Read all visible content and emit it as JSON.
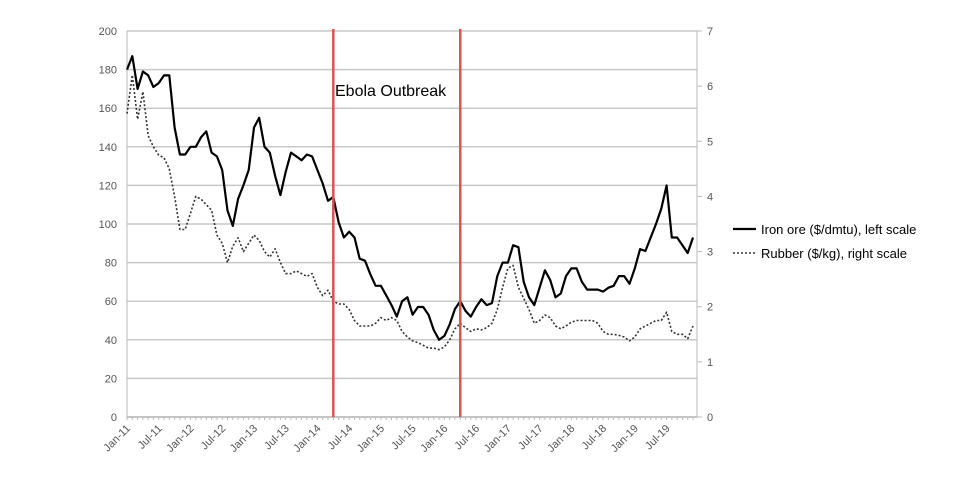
{
  "chart_data": {
    "type": "line",
    "title": "",
    "x": [
      "Jan-11",
      "Feb-11",
      "Mar-11",
      "Apr-11",
      "May-11",
      "Jun-11",
      "Jul-11",
      "Aug-11",
      "Sep-11",
      "Oct-11",
      "Nov-11",
      "Dec-11",
      "Jan-12",
      "Feb-12",
      "Mar-12",
      "Apr-12",
      "May-12",
      "Jun-12",
      "Jul-12",
      "Aug-12",
      "Sep-12",
      "Oct-12",
      "Nov-12",
      "Dec-12",
      "Jan-13",
      "Feb-13",
      "Mar-13",
      "Apr-13",
      "May-13",
      "Jun-13",
      "Jul-13",
      "Aug-13",
      "Sep-13",
      "Oct-13",
      "Nov-13",
      "Dec-13",
      "Jan-14",
      "Feb-14",
      "Mar-14",
      "Apr-14",
      "May-14",
      "Jun-14",
      "Jul-14",
      "Aug-14",
      "Sep-14",
      "Oct-14",
      "Nov-14",
      "Dec-14",
      "Jan-15",
      "Feb-15",
      "Mar-15",
      "Apr-15",
      "May-15",
      "Jun-15",
      "Jul-15",
      "Aug-15",
      "Sep-15",
      "Oct-15",
      "Nov-15",
      "Dec-15",
      "Jan-16",
      "Feb-16",
      "Mar-16",
      "Apr-16",
      "May-16",
      "Jun-16",
      "Jul-16",
      "Aug-16",
      "Sep-16",
      "Oct-16",
      "Nov-16",
      "Dec-16",
      "Jan-17",
      "Feb-17",
      "Mar-17",
      "Apr-17",
      "May-17",
      "Jun-17",
      "Jul-17",
      "Aug-17",
      "Sep-17",
      "Oct-17",
      "Nov-17",
      "Dec-17",
      "Jan-18",
      "Feb-18",
      "Mar-18",
      "Apr-18",
      "May-18",
      "Jun-18",
      "Jul-18",
      "Aug-18",
      "Sep-18",
      "Oct-18",
      "Nov-18",
      "Dec-18",
      "Jan-19",
      "Feb-19",
      "Mar-19",
      "Apr-19",
      "May-19",
      "Jun-19",
      "Jul-19",
      "Aug-19",
      "Sep-19",
      "Oct-19",
      "Nov-19",
      "Dec-19"
    ],
    "x_tick_labels": [
      "Jan-11",
      "Jul-11",
      "Jan-12",
      "Jul-12",
      "Jan-13",
      "Jul-13",
      "Jan-14",
      "Jul-14",
      "Jan-15",
      "Jul-15",
      "Jan-16",
      "Jul-16",
      "Jan-17",
      "Jul-17",
      "Jan-18",
      "Jul-18",
      "Jan-19",
      "Jul-19"
    ],
    "y_left": {
      "range": [
        0,
        200
      ],
      "ticks": [
        "0",
        "20",
        "40",
        "60",
        "80",
        "100",
        "120",
        "140",
        "160",
        "180",
        "200"
      ]
    },
    "y_right": {
      "range": [
        0,
        7
      ],
      "ticks": [
        "0",
        "1",
        "2",
        "3",
        "4",
        "5",
        "6",
        "7"
      ]
    },
    "grid": true,
    "legend_position": "right",
    "series": [
      {
        "name": "Iron ore ($/dmtu), left scale",
        "axis": "left",
        "style": "solid",
        "color": "#000000",
        "values": [
          180,
          187,
          170,
          179,
          177,
          171,
          173,
          177,
          177,
          150,
          136,
          136,
          140,
          140,
          145,
          148,
          137,
          135,
          128,
          107,
          99,
          113,
          120,
          128,
          150,
          155,
          140,
          137,
          125,
          115,
          127,
          137,
          135,
          133,
          136,
          135,
          128,
          121,
          112,
          114,
          101,
          93,
          96,
          93,
          82,
          81,
          74,
          68,
          68,
          63,
          58,
          52,
          60,
          62,
          53,
          57,
          57,
          53,
          45,
          40,
          42,
          48,
          56,
          60,
          55,
          52,
          57,
          61,
          58,
          59,
          73,
          80,
          80,
          89,
          88,
          70,
          62,
          58,
          67,
          76,
          71,
          62,
          64,
          73,
          77,
          77,
          70,
          66,
          66,
          66,
          65,
          67,
          68,
          73,
          73,
          69,
          77,
          87,
          86,
          93,
          100,
          108,
          120,
          93,
          93,
          89,
          85,
          93
        ]
      },
      {
        "name": "Rubber ($/kg), right scale",
        "axis": "right",
        "style": "dotted",
        "color": "#333333",
        "values": [
          5.5,
          6.2,
          5.4,
          5.9,
          5.1,
          4.9,
          4.75,
          4.7,
          4.5,
          4.0,
          3.4,
          3.4,
          3.7,
          4.0,
          3.95,
          3.85,
          3.75,
          3.3,
          3.15,
          2.8,
          3.1,
          3.25,
          3.0,
          3.15,
          3.3,
          3.2,
          3.0,
          2.9,
          3.05,
          2.8,
          2.6,
          2.6,
          2.65,
          2.6,
          2.55,
          2.6,
          2.35,
          2.2,
          2.3,
          2.1,
          2.05,
          2.05,
          1.95,
          1.75,
          1.65,
          1.65,
          1.65,
          1.7,
          1.8,
          1.75,
          1.8,
          1.75,
          1.55,
          1.45,
          1.38,
          1.35,
          1.3,
          1.25,
          1.25,
          1.22,
          1.27,
          1.4,
          1.6,
          1.7,
          1.62,
          1.55,
          1.6,
          1.58,
          1.62,
          1.7,
          1.95,
          2.35,
          2.7,
          2.75,
          2.35,
          2.15,
          1.95,
          1.7,
          1.75,
          1.85,
          1.8,
          1.65,
          1.6,
          1.65,
          1.72,
          1.75,
          1.75,
          1.75,
          1.75,
          1.7,
          1.55,
          1.5,
          1.5,
          1.48,
          1.45,
          1.38,
          1.45,
          1.6,
          1.65,
          1.7,
          1.75,
          1.75,
          1.9,
          1.55,
          1.5,
          1.5,
          1.42,
          1.65
        ]
      }
    ],
    "event_lines": {
      "dates": [
        "Apr-14",
        "Apr-16"
      ],
      "color": "#d9534f"
    },
    "annotation": "Ebola Outbreak"
  }
}
